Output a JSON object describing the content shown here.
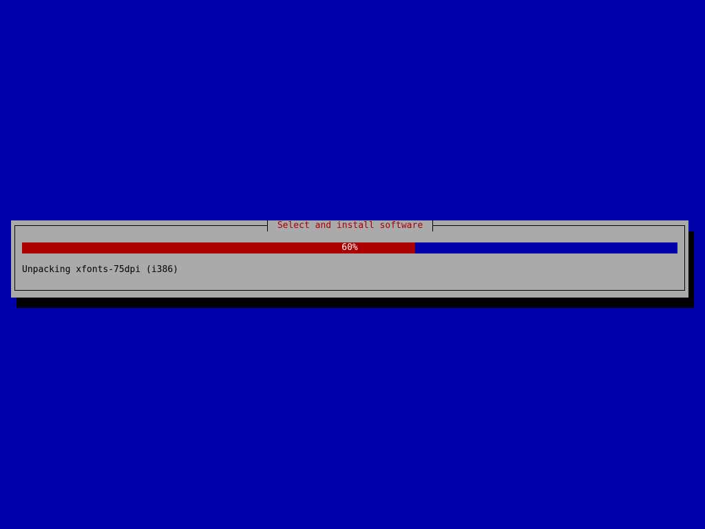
{
  "dialog": {
    "title": "Select and install software",
    "progress": {
      "percent": 60,
      "label": "60%"
    },
    "status": "Unpacking xfonts-75dpi (i386)"
  },
  "colors": {
    "background": "#0000aa",
    "dialog": "#aaaaaa",
    "title": "#aa0000",
    "progress_fill": "#aa0000",
    "progress_track": "#0000aa"
  }
}
